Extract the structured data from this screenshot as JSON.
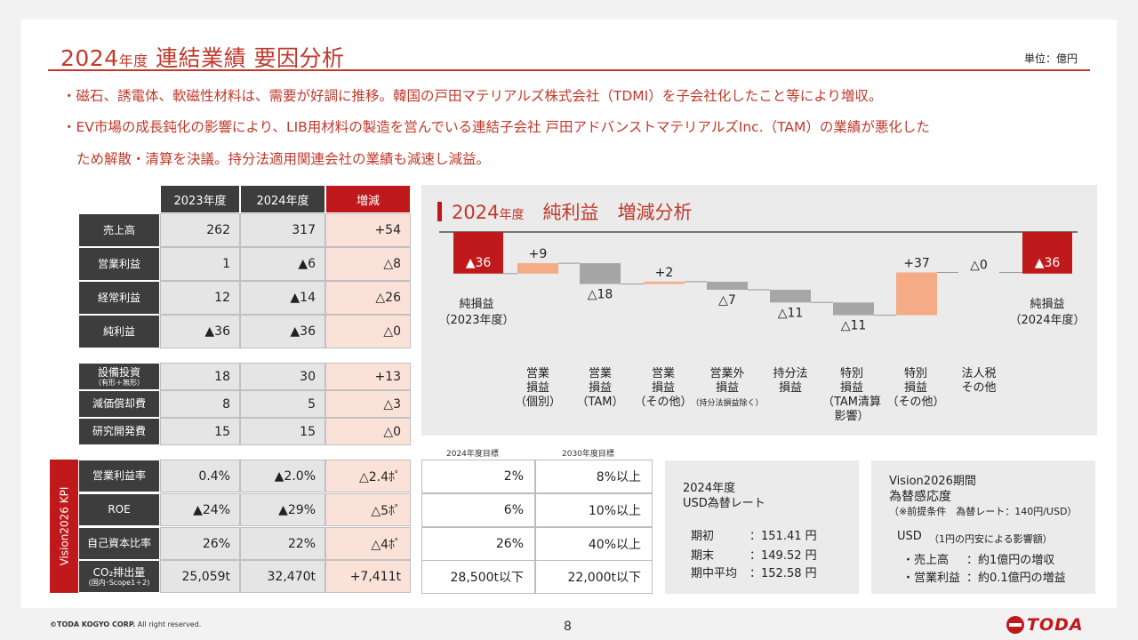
{
  "title": {
    "year": "2024",
    "nendo": "年度",
    "rest": " 連結業績 要因分析"
  },
  "unit": "単位：億円",
  "bullets": [
    "・磁石、誘電体、軟磁性材料は、需要が好調に推移。韓国の戸田マテリアルズ株式会社（TDMI）を子会社化したこと等により増収。",
    "・EV市場の成長鈍化の影響により、LIB用材料の製造を営んでいる連結子会社 戸田アドバンストマテリアルズInc.（TAM）の業績が悪化した",
    "ため解散・清算を決議。持分法適用関連会社の業績も減速し減益。"
  ],
  "table": {
    "headers": [
      "2023年度",
      "2024年度",
      "増減"
    ],
    "group1": [
      {
        "label": "売上高",
        "v2023": "262",
        "v2024": "317",
        "diff": "+54"
      },
      {
        "label": "営業利益",
        "v2023": "1",
        "v2024": "▲6",
        "diff": "△8"
      },
      {
        "label": "経常利益",
        "v2023": "12",
        "v2024": "▲14",
        "diff": "△26"
      },
      {
        "label": "純利益",
        "v2023": "▲36",
        "v2024": "▲36",
        "diff": "△0"
      }
    ],
    "group2": [
      {
        "label": "設備投資",
        "sub": "（有形＋無形）",
        "v2023": "18",
        "v2024": "30",
        "diff": "+13"
      },
      {
        "label": "減価償却費",
        "sub": "",
        "v2023": "8",
        "v2024": "5",
        "diff": "△3"
      },
      {
        "label": "研究開発費",
        "sub": "",
        "v2023": "15",
        "v2024": "15",
        "diff": "△0"
      }
    ],
    "kpi_side": "Vision2026 KPI",
    "kpi": [
      {
        "label": "営業利益率",
        "sub": "",
        "v2023": "0.4%",
        "v2024": "▲2.0%",
        "diff": "△2.4ﾎﾟ"
      },
      {
        "label": "ROE",
        "sub": "",
        "v2023": "▲24%",
        "v2024": "▲29%",
        "diff": "△5ﾎﾟ"
      },
      {
        "label": "自己資本比率",
        "sub": "",
        "v2023": "26%",
        "v2024": "22%",
        "diff": "△4ﾎﾟ"
      },
      {
        "label": "CO₂排出量",
        "sub": "(国内･Scope1＋2)",
        "v2023": "25,059t",
        "v2024": "32,470t",
        "diff": "+7,411t"
      }
    ],
    "target_headers": [
      "2024年度目標",
      "2030年度目標"
    ],
    "targets": [
      {
        "t2024": "2%",
        "t2030": "8%以上"
      },
      {
        "t2024": "6%",
        "t2030": "10%以上"
      },
      {
        "t2024": "26%",
        "t2030": "40%以上"
      },
      {
        "t2024": "28,500t以下",
        "t2030": "22,000t以下"
      }
    ]
  },
  "chart": {
    "title_year": "2024",
    "title_nendo": "年度",
    "title_rest": "　純利益　増減分析",
    "start_label": [
      "純損益",
      "（2023年度）"
    ],
    "end_label": [
      "純損益",
      "（2024年度）"
    ],
    "categories": [
      [
        "営業",
        "損益",
        "（個別）"
      ],
      [
        "営業",
        "損益",
        "（TAM）"
      ],
      [
        "営業",
        "損益",
        "（その他）"
      ],
      [
        "営業外",
        "損益",
        "（持分法損益除く）"
      ],
      [
        "持分法",
        "損益"
      ],
      [
        "特別",
        "損益",
        "（TAM清算",
        "影響）"
      ],
      [
        "特別",
        "損益",
        "（その他）"
      ],
      [
        "法人税",
        "その他"
      ]
    ]
  },
  "chart_data": {
    "type": "bar",
    "subtype": "waterfall",
    "unit": "億円",
    "start": {
      "label": "純損益（2023年度）",
      "value": -36,
      "text": "▲36"
    },
    "steps": [
      {
        "label": "営業損益（個別）",
        "value": 9,
        "text": "+9"
      },
      {
        "label": "営業損益（TAM）",
        "value": -18,
        "text": "△18"
      },
      {
        "label": "営業損益（その他）",
        "value": 2,
        "text": "+2"
      },
      {
        "label": "営業外損益（持分法損益除く）",
        "value": -7,
        "text": "△7"
      },
      {
        "label": "持分法損益",
        "value": -11,
        "text": "△11"
      },
      {
        "label": "特別損益（TAM清算影響）",
        "value": -11,
        "text": "△11"
      },
      {
        "label": "特別損益（その他）",
        "value": 37,
        "text": "+37"
      },
      {
        "label": "法人税その他",
        "value": 0,
        "text": "△0"
      }
    ],
    "end": {
      "label": "純損益（2024年度）",
      "value": -36,
      "text": "▲36"
    },
    "colors": {
      "total": "#c0191b",
      "increase": "#f4ab86",
      "decrease": "#a6a6a6"
    }
  },
  "fx_box": {
    "title1": "2024年度",
    "title2": "USD為替レート",
    "rows": [
      {
        "label": "期初",
        "value": "：151.41 円"
      },
      {
        "label": "期末",
        "value": "：149.52 円"
      },
      {
        "label": "期中平均",
        "value": "：152.58 円"
      }
    ]
  },
  "sens_box": {
    "title1": "Vision2026期間",
    "title2": "為替感応度",
    "note": "（※前提条件　為替レート：140円/USD）",
    "usd": "USD",
    "usd_note": "（1円の円安による影響額）",
    "rows": [
      {
        "label": "・売上高",
        "value": "：約1億円の増収"
      },
      {
        "label": "・営業利益",
        "value": "：約0.1億円の増益"
      }
    ]
  },
  "footer": {
    "copyright_mark": "©TODA KOGYO CORP.",
    "copyright_rest": " All right reserved.",
    "page": "8",
    "logo": "TODA"
  }
}
